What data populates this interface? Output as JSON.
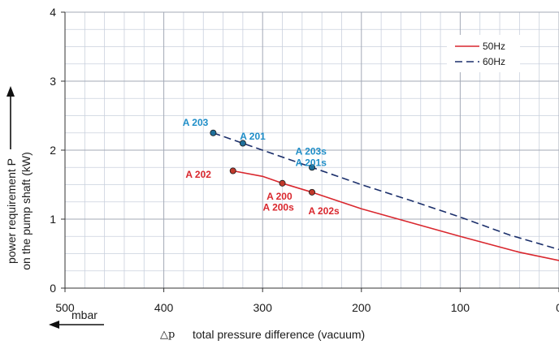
{
  "chart_data": {
    "type": "line",
    "xlabel_symbol": "△p",
    "xlabel": "total pressure difference (vacuum)",
    "xunit": "mbar",
    "ylabel_line1": "power requirement P",
    "ylabel_line2": "on the pump shaft (kW)",
    "xlim": [
      500,
      0
    ],
    "ylim": [
      0,
      4
    ],
    "x_ticks": [
      500,
      400,
      300,
      200,
      100,
      0
    ],
    "y_ticks": [
      0,
      1,
      2,
      3,
      4
    ],
    "x_tick_labels": [
      "500",
      "400",
      "300",
      "200",
      "100",
      "0"
    ],
    "y_tick_labels": [
      "0",
      "1",
      "2",
      "3",
      "4"
    ],
    "grid": true,
    "legend_position": "top-right",
    "series": [
      {
        "name": "50Hz",
        "color": "#d9272e",
        "dash": "solid",
        "points": [
          [
            330,
            1.7
          ],
          [
            300,
            1.62
          ],
          [
            280,
            1.52
          ],
          [
            250,
            1.39
          ],
          [
            200,
            1.15
          ],
          [
            150,
            0.95
          ],
          [
            100,
            0.75
          ],
          [
            40,
            0.52
          ],
          [
            0,
            0.4
          ]
        ]
      },
      {
        "name": "60Hz",
        "color": "#1b2f6b",
        "dash": "dashed",
        "points": [
          [
            350,
            2.25
          ],
          [
            320,
            2.1
          ],
          [
            250,
            1.75
          ],
          [
            200,
            1.5
          ],
          [
            150,
            1.27
          ],
          [
            100,
            1.03
          ],
          [
            50,
            0.77
          ],
          [
            0,
            0.56
          ]
        ]
      }
    ],
    "markers": [
      {
        "x": 350,
        "y": 2.25,
        "series": "60Hz",
        "color": "#1f6f9a"
      },
      {
        "x": 320,
        "y": 2.1,
        "series": "60Hz",
        "color": "#1f6f9a"
      },
      {
        "x": 250,
        "y": 1.75,
        "series": "60Hz",
        "color": "#1f6f9a"
      },
      {
        "x": 330,
        "y": 1.7,
        "series": "50Hz",
        "color": "#c0392b"
      },
      {
        "x": 280,
        "y": 1.52,
        "series": "50Hz",
        "color": "#c0392b"
      },
      {
        "x": 250,
        "y": 1.39,
        "series": "50Hz",
        "color": "#c0392b"
      }
    ],
    "annotations": [
      {
        "text": "A 203",
        "x": 368,
        "y": 2.4,
        "color": "#1f8ec8",
        "anchor": "middle"
      },
      {
        "text": "A 201",
        "x": 310,
        "y": 2.2,
        "color": "#1f8ec8",
        "anchor": "middle"
      },
      {
        "text": "A 203s",
        "x": 251,
        "y": 1.98,
        "color": "#1f8ec8",
        "anchor": "middle"
      },
      {
        "text": "A 201s",
        "x": 251,
        "y": 1.82,
        "color": "#1f8ec8",
        "anchor": "middle"
      },
      {
        "text": "A 202",
        "x": 365,
        "y": 1.65,
        "color": "#d9272e",
        "anchor": "middle"
      },
      {
        "text": "A 200",
        "x": 283,
        "y": 1.33,
        "color": "#d9272e",
        "anchor": "middle"
      },
      {
        "text": "A 200s",
        "x": 284,
        "y": 1.17,
        "color": "#d9272e",
        "anchor": "middle"
      },
      {
        "text": "A 202s",
        "x": 238,
        "y": 1.12,
        "color": "#d9272e",
        "anchor": "middle"
      }
    ]
  }
}
